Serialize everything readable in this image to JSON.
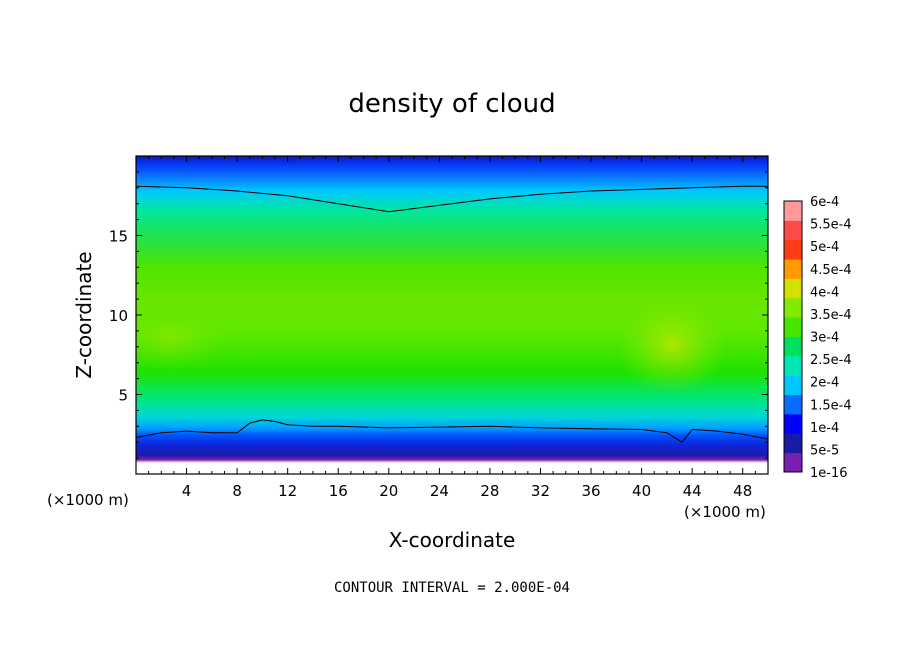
{
  "chart_data": {
    "type": "heatmap",
    "title": "density of cloud",
    "xlabel": "X-coordinate",
    "ylabel": "Z-coordinate",
    "x_unit": "(×1000 m)",
    "xlim": [
      0,
      50
    ],
    "ylim": [
      0,
      20
    ],
    "x_ticks": [
      4,
      8,
      12,
      16,
      20,
      24,
      28,
      32,
      36,
      40,
      44,
      48
    ],
    "y_ticks": [
      5,
      10,
      15
    ],
    "colorbar": {
      "labels": [
        "1e-16",
        "5e-5",
        "1e-4",
        "1.5e-4",
        "2e-4",
        "2.5e-4",
        "3e-4",
        "3.5e-4",
        "4e-4",
        "4.5e-4",
        "5e-4",
        "5.5e-4",
        "6e-4"
      ],
      "colors": [
        "#7a1fb0",
        "#1a1aa8",
        "#0000ff",
        "#0a6cff",
        "#00c8ff",
        "#00e6b4",
        "#00e060",
        "#46e600",
        "#82ea00",
        "#d4e000",
        "#ff9a00",
        "#ff3c14",
        "#ff4a4a",
        "#ff9999"
      ]
    },
    "contour_interval_text": "CONTOUR INTERVAL = 2.000E-04",
    "contour_lines": [
      {
        "level": "2e-4 (upper)",
        "x": [
          0,
          4,
          8,
          12,
          16,
          20,
          24,
          28,
          32,
          36,
          40,
          44,
          48,
          50
        ],
        "z": [
          18.1,
          18.0,
          17.8,
          17.5,
          17.0,
          16.5,
          16.9,
          17.3,
          17.6,
          17.8,
          17.9,
          18.0,
          18.1,
          18.1
        ]
      },
      {
        "level": "2e-4 (lower)",
        "x": [
          0,
          2,
          4,
          6,
          8,
          9,
          10,
          11,
          12,
          14,
          16,
          20,
          24,
          28,
          32,
          36,
          40,
          42,
          43.2,
          44,
          46,
          48,
          50
        ],
        "z": [
          2.3,
          2.6,
          2.7,
          2.6,
          2.6,
          3.2,
          3.4,
          3.3,
          3.1,
          3.0,
          3.0,
          2.9,
          2.95,
          3.0,
          2.9,
          2.85,
          2.8,
          2.6,
          2.0,
          2.8,
          2.7,
          2.5,
          2.2
        ]
      }
    ],
    "field_description": "density max ~3.5e-4 to 4e-4 in band z 7-12; blue near top and bottom; white (no cloud) below ~1 km"
  }
}
